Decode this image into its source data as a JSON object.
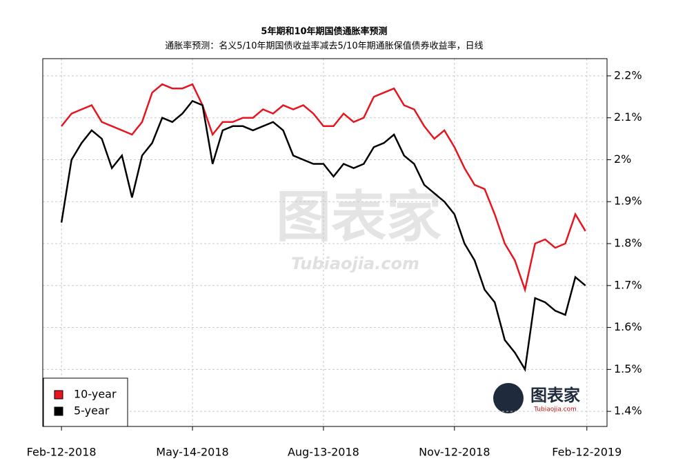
{
  "chart_data": {
    "type": "line",
    "title": "5年期和10年期国债通胀率预测",
    "subtitle": "通胀率预测：名义5/10年期国债收益率减去5/10年期通胀保值债券收益率，日线",
    "watermark": "图表家",
    "watermark_url": "Tubiaojia.com",
    "x": [
      "2018-02-12",
      "2018-02-19",
      "2018-02-26",
      "2018-03-05",
      "2018-03-12",
      "2018-03-19",
      "2018-03-26",
      "2018-04-02",
      "2018-04-09",
      "2018-04-16",
      "2018-04-23",
      "2018-04-30",
      "2018-05-07",
      "2018-05-14",
      "2018-05-21",
      "2018-05-28",
      "2018-06-04",
      "2018-06-11",
      "2018-06-18",
      "2018-06-25",
      "2018-07-02",
      "2018-07-09",
      "2018-07-16",
      "2018-07-23",
      "2018-07-30",
      "2018-08-06",
      "2018-08-13",
      "2018-08-20",
      "2018-08-27",
      "2018-09-03",
      "2018-09-10",
      "2018-09-17",
      "2018-09-24",
      "2018-10-01",
      "2018-10-08",
      "2018-10-15",
      "2018-10-22",
      "2018-10-29",
      "2018-11-05",
      "2018-11-12",
      "2018-11-19",
      "2018-11-26",
      "2018-12-03",
      "2018-12-10",
      "2018-12-17",
      "2018-12-24",
      "2018-12-31",
      "2019-01-07",
      "2019-01-14",
      "2019-01-21",
      "2019-01-28",
      "2019-02-04",
      "2019-02-11"
    ],
    "series": [
      {
        "name": "10-year",
        "color": "#e8141e",
        "values": [
          2.08,
          2.11,
          2.12,
          2.13,
          2.09,
          2.08,
          2.07,
          2.06,
          2.09,
          2.16,
          2.18,
          2.17,
          2.17,
          2.18,
          2.13,
          2.06,
          2.09,
          2.09,
          2.1,
          2.1,
          2.12,
          2.11,
          2.13,
          2.12,
          2.13,
          2.11,
          2.08,
          2.08,
          2.11,
          2.09,
          2.1,
          2.15,
          2.16,
          2.17,
          2.13,
          2.12,
          2.08,
          2.05,
          2.07,
          2.03,
          1.98,
          1.94,
          1.93,
          1.87,
          1.8,
          1.76,
          1.69,
          1.8,
          1.81,
          1.79,
          1.8,
          1.87,
          1.83
        ]
      },
      {
        "name": "5-year",
        "color": "#000000",
        "values": [
          1.85,
          2.0,
          2.04,
          2.07,
          2.05,
          1.98,
          2.01,
          1.91,
          2.01,
          2.04,
          2.1,
          2.09,
          2.11,
          2.14,
          2.13,
          1.99,
          2.07,
          2.08,
          2.08,
          2.07,
          2.08,
          2.09,
          2.07,
          2.01,
          2.0,
          1.99,
          1.99,
          1.96,
          1.99,
          1.98,
          1.99,
          2.03,
          2.04,
          2.06,
          2.01,
          1.99,
          1.94,
          1.92,
          1.9,
          1.87,
          1.8,
          1.76,
          1.69,
          1.66,
          1.57,
          1.54,
          1.5,
          1.67,
          1.66,
          1.64,
          1.63,
          1.72,
          1.7
        ]
      }
    ],
    "xlim": [
      "2018-01-30",
      "2019-02-26"
    ],
    "xticks": [
      {
        "value": "2018-02-12",
        "label": "Feb-12-2018"
      },
      {
        "value": "2018-05-14",
        "label": "May-14-2018"
      },
      {
        "value": "2018-08-13",
        "label": "Aug-13-2018"
      },
      {
        "value": "2018-11-12",
        "label": "Nov-12-2018"
      },
      {
        "value": "2019-02-12",
        "label": "Feb-12-2019"
      }
    ],
    "ylim": [
      1.364,
      2.241
    ],
    "yticks": [
      {
        "value": 1.4,
        "label": "1.4%"
      },
      {
        "value": 1.5,
        "label": "1.5%"
      },
      {
        "value": 1.6,
        "label": "1.6%"
      },
      {
        "value": 1.7,
        "label": "1.7%"
      },
      {
        "value": 1.8,
        "label": "1.8%"
      },
      {
        "value": 1.9,
        "label": "1.9%"
      },
      {
        "value": 2,
        "label": "2%"
      },
      {
        "value": 2.1,
        "label": "2.1%"
      },
      {
        "value": 2.2,
        "label": "2.2%"
      }
    ],
    "grid": true,
    "legend": "bottom-left"
  }
}
